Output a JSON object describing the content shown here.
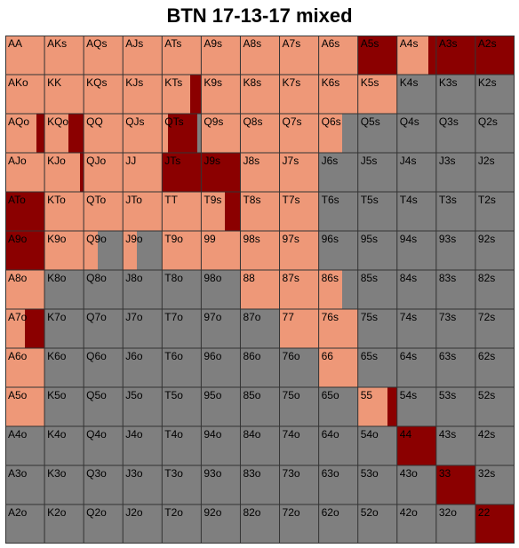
{
  "title": "BTN 17-13-17 mixed",
  "chart_data": {
    "type": "heatmap",
    "title": "BTN 17-13-17 mixed",
    "colors": {
      "raise": "#ee9878",
      "allin": "#8b0000",
      "fold": "#7f7f7f"
    },
    "legend": [],
    "rows": [
      [
        [
          "AA",
          1,
          0
        ],
        [
          "AKs",
          1,
          0
        ],
        [
          "AQs",
          1,
          0
        ],
        [
          "AJs",
          1,
          0
        ],
        [
          "ATs",
          1,
          0
        ],
        [
          "A9s",
          1,
          0
        ],
        [
          "A8s",
          1,
          0
        ],
        [
          "A7s",
          1,
          0
        ],
        [
          "A6s",
          1,
          0
        ],
        [
          "A5s",
          0,
          1
        ],
        [
          "A4s",
          0.8,
          0.2
        ],
        [
          "A3s",
          0,
          1
        ],
        [
          "A2s",
          0,
          1
        ]
      ],
      [
        [
          "AKo",
          1,
          0
        ],
        [
          "KK",
          1,
          0
        ],
        [
          "KQs",
          1,
          0
        ],
        [
          "KJs",
          1,
          0
        ],
        [
          "KTs",
          0.73,
          0.27
        ],
        [
          "K9s",
          1,
          0
        ],
        [
          "K8s",
          1,
          0
        ],
        [
          "K7s",
          1,
          0
        ],
        [
          "K6s",
          1,
          0
        ],
        [
          "K5s",
          1,
          0
        ],
        [
          "K4s",
          0,
          0
        ],
        [
          "K3s",
          0,
          0
        ],
        [
          "K2s",
          0,
          0
        ]
      ],
      [
        [
          "AQo",
          0.8,
          0.2
        ],
        [
          "KQo",
          0.6,
          0.4
        ],
        [
          "QQ",
          1,
          0
        ],
        [
          "QJs",
          1,
          0
        ],
        [
          "QTs",
          0.15,
          0.75
        ],
        [
          "Q9s",
          1,
          0
        ],
        [
          "Q8s",
          1,
          0
        ],
        [
          "Q7s",
          1,
          0
        ],
        [
          "Q6s",
          0.6,
          0
        ],
        [
          "Q5s",
          0,
          0
        ],
        [
          "Q4s",
          0,
          0
        ],
        [
          "Q3s",
          0,
          0
        ],
        [
          "Q2s",
          0,
          0
        ]
      ],
      [
        [
          "AJo",
          1,
          0
        ],
        [
          "KJo",
          0.9,
          0.1
        ],
        [
          "QJo",
          1,
          0
        ],
        [
          "JJ",
          1,
          0
        ],
        [
          "JTs",
          0,
          1
        ],
        [
          "J9s",
          0,
          1
        ],
        [
          "J8s",
          1,
          0
        ],
        [
          "J7s",
          1,
          0
        ],
        [
          "J6s",
          0,
          0
        ],
        [
          "J5s",
          0,
          0
        ],
        [
          "J4s",
          0,
          0
        ],
        [
          "J3s",
          0,
          0
        ],
        [
          "J2s",
          0,
          0
        ]
      ],
      [
        [
          "ATo",
          0,
          1
        ],
        [
          "KTo",
          1,
          0
        ],
        [
          "QTo",
          1,
          0
        ],
        [
          "JTo",
          1,
          0
        ],
        [
          "TT",
          1,
          0
        ],
        [
          "T9s",
          0.6,
          0.4
        ],
        [
          "T8s",
          1,
          0
        ],
        [
          "T7s",
          1,
          0
        ],
        [
          "T6s",
          0,
          0
        ],
        [
          "T5s",
          0,
          0
        ],
        [
          "T4s",
          0,
          0
        ],
        [
          "T3s",
          0,
          0
        ],
        [
          "T2s",
          0,
          0
        ]
      ],
      [
        [
          "A9o",
          0,
          1
        ],
        [
          "K9o",
          1,
          0
        ],
        [
          "Q9o",
          0.35,
          0
        ],
        [
          "J9o",
          0.35,
          0
        ],
        [
          "T9o",
          1,
          0
        ],
        [
          "99",
          1,
          0
        ],
        [
          "98s",
          1,
          0
        ],
        [
          "97s",
          1,
          0
        ],
        [
          "96s",
          0,
          0
        ],
        [
          "95s",
          0,
          0
        ],
        [
          "94s",
          0,
          0
        ],
        [
          "93s",
          0,
          0
        ],
        [
          "92s",
          0,
          0
        ]
      ],
      [
        [
          "A8o",
          1,
          0
        ],
        [
          "K8o",
          0,
          0
        ],
        [
          "Q8o",
          0,
          0
        ],
        [
          "J8o",
          0,
          0
        ],
        [
          "T8o",
          0,
          0
        ],
        [
          "98o",
          0,
          0
        ],
        [
          "88",
          1,
          0
        ],
        [
          "87s",
          1,
          0
        ],
        [
          "86s",
          0.6,
          0
        ],
        [
          "85s",
          0,
          0
        ],
        [
          "84s",
          0,
          0
        ],
        [
          "83s",
          0,
          0
        ],
        [
          "82s",
          0,
          0
        ]
      ],
      [
        [
          "A7o",
          0.5,
          0.5
        ],
        [
          "K7o",
          0,
          0
        ],
        [
          "Q7o",
          0,
          0
        ],
        [
          "J7o",
          0,
          0
        ],
        [
          "T7o",
          0,
          0
        ],
        [
          "97o",
          0,
          0
        ],
        [
          "87o",
          0,
          0
        ],
        [
          "77",
          1,
          0
        ],
        [
          "76s",
          1,
          0
        ],
        [
          "75s",
          0,
          0
        ],
        [
          "74s",
          0,
          0
        ],
        [
          "73s",
          0,
          0
        ],
        [
          "72s",
          0,
          0
        ]
      ],
      [
        [
          "A6o",
          1,
          0
        ],
        [
          "K6o",
          0,
          0
        ],
        [
          "Q6o",
          0,
          0
        ],
        [
          "J6o",
          0,
          0
        ],
        [
          "T6o",
          0,
          0
        ],
        [
          "96o",
          0,
          0
        ],
        [
          "86o",
          0,
          0
        ],
        [
          "76o",
          0,
          0
        ],
        [
          "66",
          1,
          0
        ],
        [
          "65s",
          0,
          0
        ],
        [
          "64s",
          0,
          0
        ],
        [
          "63s",
          0,
          0
        ],
        [
          "62s",
          0,
          0
        ]
      ],
      [
        [
          "A5o",
          1,
          0
        ],
        [
          "K5o",
          0,
          0
        ],
        [
          "Q5o",
          0,
          0
        ],
        [
          "J5o",
          0,
          0
        ],
        [
          "T5o",
          0,
          0
        ],
        [
          "95o",
          0,
          0
        ],
        [
          "85o",
          0,
          0
        ],
        [
          "75o",
          0,
          0
        ],
        [
          "65o",
          0,
          0
        ],
        [
          "55",
          0.75,
          0.25
        ],
        [
          "54s",
          0,
          0
        ],
        [
          "53s",
          0,
          0
        ],
        [
          "52s",
          0,
          0
        ]
      ],
      [
        [
          "A4o",
          0,
          0
        ],
        [
          "K4o",
          0,
          0
        ],
        [
          "Q4o",
          0,
          0
        ],
        [
          "J4o",
          0,
          0
        ],
        [
          "T4o",
          0,
          0
        ],
        [
          "94o",
          0,
          0
        ],
        [
          "84o",
          0,
          0
        ],
        [
          "74o",
          0,
          0
        ],
        [
          "64o",
          0,
          0
        ],
        [
          "54o",
          0,
          0
        ],
        [
          "44",
          0,
          1
        ],
        [
          "43s",
          0,
          0
        ],
        [
          "42s",
          0,
          0
        ]
      ],
      [
        [
          "A3o",
          0,
          0
        ],
        [
          "K3o",
          0,
          0
        ],
        [
          "Q3o",
          0,
          0
        ],
        [
          "J3o",
          0,
          0
        ],
        [
          "T3o",
          0,
          0
        ],
        [
          "93o",
          0,
          0
        ],
        [
          "83o",
          0,
          0
        ],
        [
          "73o",
          0,
          0
        ],
        [
          "63o",
          0,
          0
        ],
        [
          "53o",
          0,
          0
        ],
        [
          "43o",
          0,
          0
        ],
        [
          "33",
          0,
          1
        ],
        [
          "32s",
          0,
          0
        ]
      ],
      [
        [
          "A2o",
          0,
          0
        ],
        [
          "K2o",
          0,
          0
        ],
        [
          "Q2o",
          0,
          0
        ],
        [
          "J2o",
          0,
          0
        ],
        [
          "T2o",
          0,
          0
        ],
        [
          "92o",
          0,
          0
        ],
        [
          "82o",
          0,
          0
        ],
        [
          "72o",
          0,
          0
        ],
        [
          "62o",
          0,
          0
        ],
        [
          "52o",
          0,
          0
        ],
        [
          "42o",
          0,
          0
        ],
        [
          "32o",
          0,
          0
        ],
        [
          "22",
          0,
          1
        ]
      ]
    ]
  }
}
